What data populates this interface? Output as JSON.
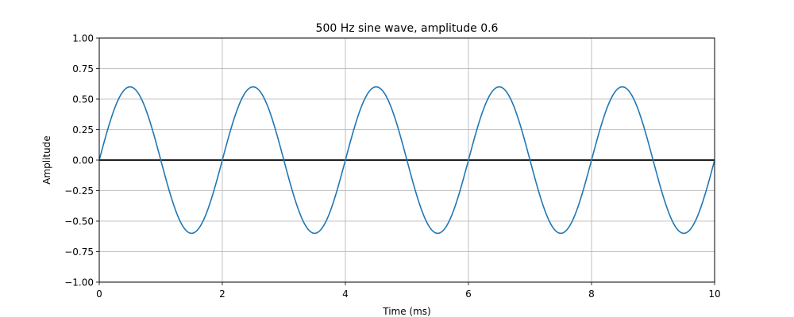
{
  "chart_data": {
    "type": "line",
    "title": "500 Hz sine wave, amplitude 0.6",
    "xlabel": "Time (ms)",
    "ylabel": "Amplitude",
    "xlim": [
      0,
      10
    ],
    "ylim": [
      -1.0,
      1.0
    ],
    "x_ticks": [
      0,
      2,
      4,
      6,
      8,
      10
    ],
    "x_tick_labels": [
      "0",
      "2",
      "4",
      "6",
      "8",
      "10"
    ],
    "y_ticks": [
      -1.0,
      -0.75,
      -0.5,
      -0.25,
      0.0,
      0.25,
      0.5,
      0.75,
      1.0
    ],
    "y_tick_labels": [
      "−1.00",
      "−0.75",
      "−0.50",
      "−0.25",
      "0.00",
      "0.25",
      "0.50",
      "0.75",
      "1.00"
    ],
    "grid": true,
    "reference_line": {
      "y": 0,
      "color": "#000000"
    },
    "series": [
      {
        "frequency_hz": 500,
        "amplitude": 0.6,
        "color": "#1f77b4",
        "x": [
          0.0,
          0.25,
          0.5,
          0.75,
          1.0,
          1.25,
          1.5,
          1.75,
          2.0,
          2.25,
          2.5,
          2.75,
          3.0,
          3.25,
          3.5,
          3.75,
          4.0,
          4.25,
          4.5,
          4.75,
          5.0,
          5.25,
          5.5,
          5.75,
          6.0,
          6.25,
          6.5,
          6.75,
          7.0,
          7.25,
          7.5,
          7.75,
          8.0,
          8.25,
          8.5,
          8.75,
          9.0,
          9.25,
          9.5,
          9.75,
          10.0
        ],
        "y": [
          0.0,
          0.4243,
          0.6,
          0.4243,
          0.0,
          -0.4243,
          -0.6,
          -0.4243,
          0.0,
          0.4243,
          0.6,
          0.4243,
          0.0,
          -0.4243,
          -0.6,
          -0.4243,
          0.0,
          0.4243,
          0.6,
          0.4243,
          0.0,
          -0.4243,
          -0.6,
          -0.4243,
          0.0,
          0.4243,
          0.6,
          0.4243,
          0.0,
          -0.4243,
          -0.6,
          -0.4243,
          0.0,
          0.4243,
          0.6,
          0.4243,
          0.0,
          -0.4243,
          -0.6,
          -0.4243,
          0.0
        ]
      }
    ]
  }
}
